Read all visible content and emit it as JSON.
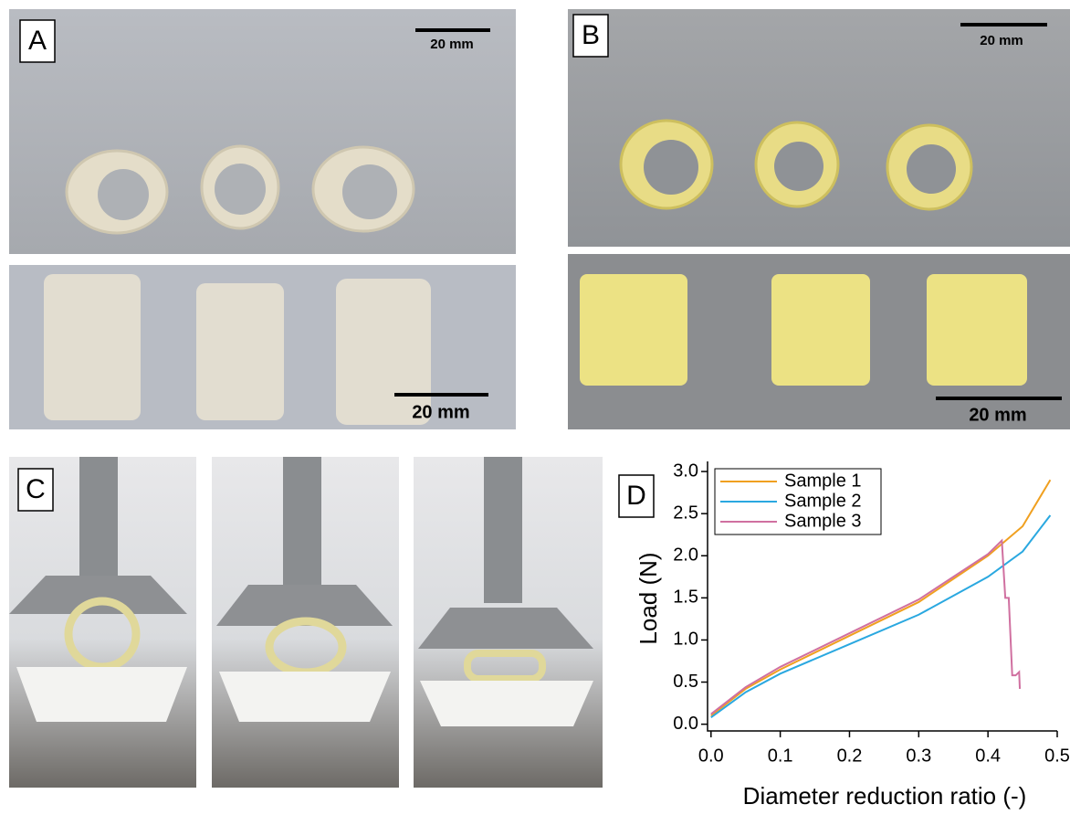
{
  "panels": {
    "A": {
      "label": "A",
      "scale_bars": [
        "20 mm",
        "20 mm"
      ]
    },
    "B": {
      "label": "B",
      "scale_bars": [
        "20 mm",
        "20 mm"
      ]
    },
    "C": {
      "label": "C"
    },
    "D": {
      "label": "D"
    }
  },
  "chart_data": {
    "type": "line",
    "x_label": "Diameter reduction ratio (-)",
    "y_label": "Load (N)",
    "xlim": [
      -0.005,
      0.5
    ],
    "ylim": [
      -0.08,
      3.12
    ],
    "xticks": [
      {
        "value": 0,
        "label": "0.0"
      },
      {
        "value": 0.1,
        "label": "0.1"
      },
      {
        "value": 0.2,
        "label": "0.2"
      },
      {
        "value": 0.3,
        "label": "0.3"
      },
      {
        "value": 0.4,
        "label": "0.4"
      },
      {
        "value": 0.5,
        "label": "0.5"
      }
    ],
    "yticks": [
      {
        "value": 0,
        "label": "0.0"
      },
      {
        "value": 0.5,
        "label": "0.5"
      },
      {
        "value": 1,
        "label": "1.0"
      },
      {
        "value": 1.5,
        "label": "1.5"
      },
      {
        "value": 2,
        "label": "2.0"
      },
      {
        "value": 2.5,
        "label": "2.5"
      },
      {
        "value": 3,
        "label": "3.0"
      }
    ],
    "legend": "upper left",
    "series": [
      {
        "name": "Sample 1",
        "color": "#f0a020",
        "x": [
          0,
          0.05,
          0.1,
          0.2,
          0.3,
          0.4,
          0.45,
          0.49
        ],
        "values": [
          0.1,
          0.42,
          0.65,
          1.05,
          1.45,
          2.0,
          2.35,
          2.9
        ]
      },
      {
        "name": "Sample 2",
        "color": "#2aa8e0",
        "x": [
          0,
          0.05,
          0.1,
          0.2,
          0.3,
          0.4,
          0.45,
          0.49
        ],
        "values": [
          0.08,
          0.38,
          0.6,
          0.95,
          1.3,
          1.75,
          2.05,
          2.48
        ]
      },
      {
        "name": "Sample 3",
        "color": "#d070a0",
        "x": [
          0,
          0.05,
          0.1,
          0.2,
          0.3,
          0.4,
          0.42,
          0.425,
          0.43,
          0.435,
          0.44,
          0.445,
          0.446
        ],
        "values": [
          0.12,
          0.44,
          0.68,
          1.08,
          1.48,
          2.02,
          2.18,
          1.5,
          1.5,
          0.58,
          0.58,
          0.62,
          0.42
        ]
      }
    ]
  }
}
